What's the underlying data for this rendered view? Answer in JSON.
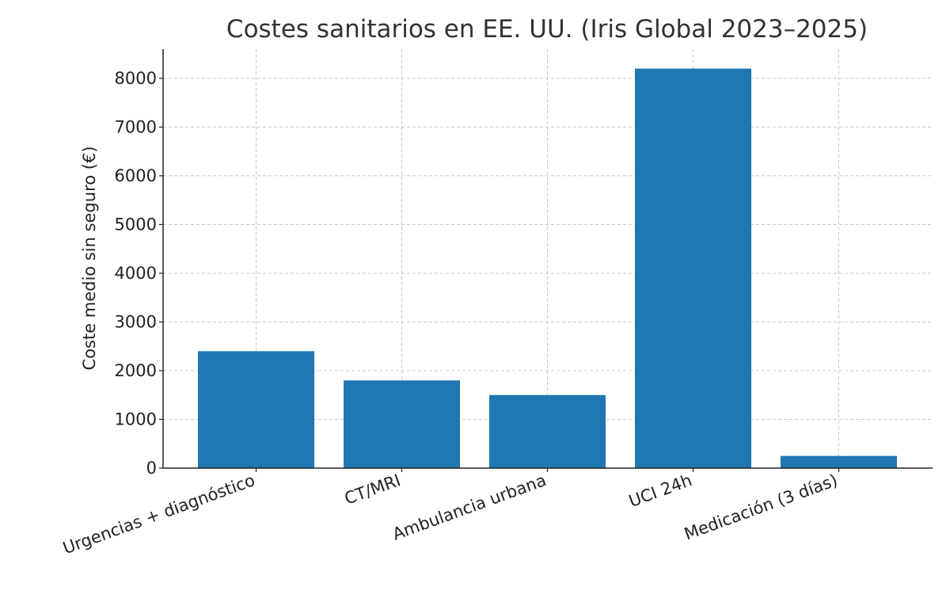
{
  "chart_data": {
    "type": "bar",
    "title": "Costes sanitarios en EE. UU. (Iris Global 2023–2025)",
    "xlabel": "",
    "ylabel": "Coste medio sin seguro (€)",
    "categories": [
      "Urgencias + diagnóstico",
      "CT/MRI",
      "Ambulancia urbana",
      "UCI 24h",
      "Medicación (3 días)"
    ],
    "values": [
      2400,
      1800,
      1500,
      8200,
      250
    ],
    "ylim": [
      0,
      8600
    ],
    "yticks": [
      0,
      1000,
      2000,
      3000,
      4000,
      5000,
      6000,
      7000,
      8000
    ],
    "ytick_labels": [
      "0",
      "1000",
      "2000",
      "3000",
      "4000",
      "5000",
      "6000",
      "7000",
      "8000"
    ],
    "grid": true,
    "legend": "none",
    "bar_color": "#1f77b4",
    "grid_color": "#c8c8c8",
    "axis_color": "#222222"
  }
}
